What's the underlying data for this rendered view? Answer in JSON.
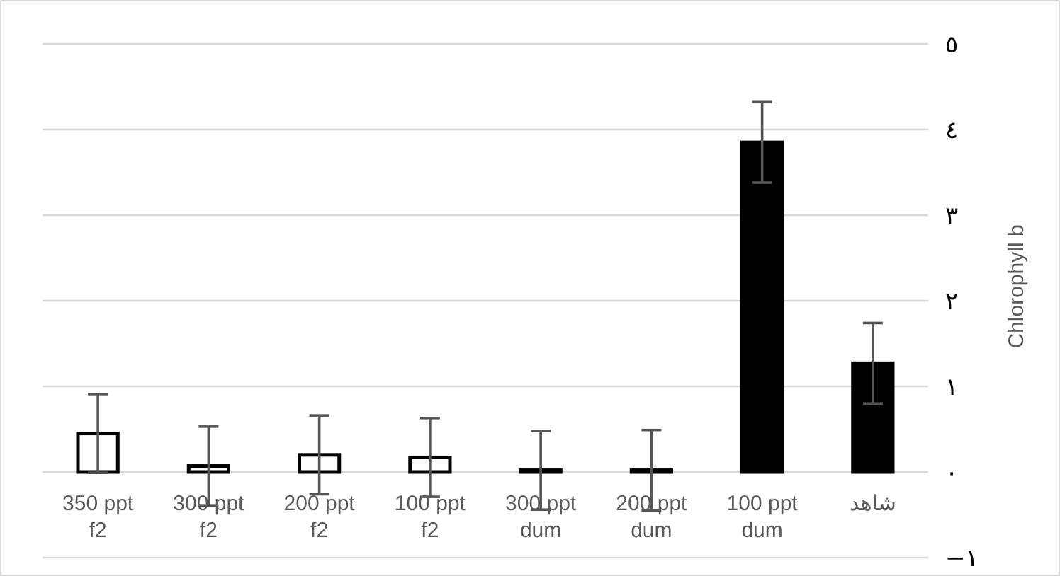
{
  "chart_data": {
    "type": "bar",
    "ylabel": "Chlorophyll b",
    "categories": [
      "350 ppt f2",
      "300 ppt f2",
      "200 ppt f2",
      "100 ppt f2",
      "300 ppt dum",
      "200 ppt dum",
      "100 ppt dum",
      "شاهد"
    ],
    "values": [
      0.45,
      0.07,
      0.2,
      0.17,
      0.02,
      0.02,
      3.85,
      1.27
    ],
    "errors": [
      0.46,
      0.46,
      0.46,
      0.46,
      0.46,
      0.47,
      0.47,
      0.47
    ],
    "colors": [
      "#ffffff",
      "#ffffff",
      "#ffffff",
      "#ffffff",
      "#ffffff",
      "#ffffff",
      "#000000",
      "#000000"
    ],
    "ylim": [
      -1,
      5
    ],
    "yticks": [
      {
        "value": -1,
        "label": "−١"
      },
      {
        "value": 0,
        "label": "٠"
      },
      {
        "value": 1,
        "label": "١"
      },
      {
        "value": 2,
        "label": "٢"
      },
      {
        "value": 3,
        "label": "٣"
      },
      {
        "value": 4,
        "label": "٤"
      },
      {
        "value": 5,
        "label": "٥"
      }
    ],
    "grid": "y"
  }
}
